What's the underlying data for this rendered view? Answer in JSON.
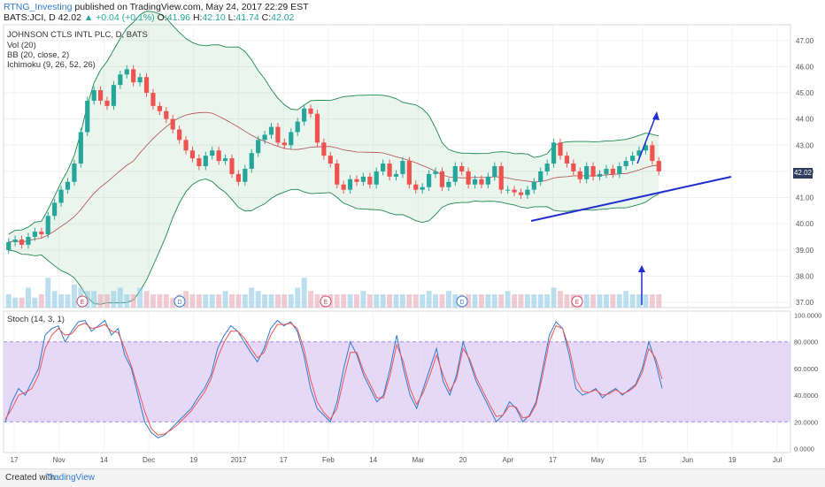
{
  "header": {
    "author": "RTNG_Investing",
    "published": "published on TradingView.com, May 24, 2017 22:29 EST",
    "symbol_line": "BATS:JCI, D",
    "last": "42.02",
    "change": "▲ +0.04 (+0.1%)",
    "o_label": "O:",
    "o": "41.96",
    "h_label": "H:",
    "h": "42.10",
    "l_label": "L:",
    "l": "41.74",
    "c_label": "C:",
    "c": "42.02"
  },
  "legend": {
    "name": "JOHNSON CTLS INTL PLC, D, BATS",
    "vol": "Vol (20)",
    "bb": "BB (20, close, 2)",
    "ichimoku": "Ichimoku (9, 26, 52, 26)",
    "stoch": "Stoch (14, 3, 1)"
  },
  "price_badge": "42.02",
  "footer": {
    "created": "Created with",
    "logo": "TradingView"
  },
  "colors": {
    "up": "#26a69a",
    "down": "#ef5350",
    "bb": "#1b8a4a",
    "stoch_k": "#2e7bcf",
    "stoch_d": "#ef5350",
    "trend": "#1f2ecf",
    "stoch_band": "#dcc9f5"
  },
  "chart_data": [
    {
      "type": "line",
      "title": "JOHNSON CTLS INTL PLC, D, BATS",
      "y_ticks": [
        "47.00",
        "46.00",
        "45.00",
        "44.00",
        "43.00",
        "42.00",
        "41.00",
        "40.00",
        "39.00",
        "38.00",
        "37.00"
      ],
      "x_ticks": [
        "17",
        "Nov",
        "14",
        "Dec",
        "19",
        "2017",
        "17",
        "Feb",
        "14",
        "Mar",
        "20",
        "Apr",
        "17",
        "May",
        "15",
        "Jun",
        "19",
        "Jul"
      ],
      "ylim": [
        36.8,
        47.6
      ],
      "close": [
        39.3,
        39.4,
        39.2,
        39.5,
        39.7,
        39.6,
        40.3,
        40.8,
        41.3,
        41.6,
        42.3,
        43.5,
        44.7,
        45.1,
        44.7,
        44.5,
        45.3,
        45.7,
        45.9,
        45.4,
        45.6,
        45.0,
        44.5,
        44.3,
        44.0,
        43.6,
        43.2,
        42.8,
        42.5,
        42.2,
        42.6,
        42.8,
        42.4,
        42.5,
        41.9,
        41.6,
        42.1,
        42.7,
        43.2,
        43.4,
        43.7,
        43.1,
        43.0,
        43.5,
        43.9,
        44.4,
        44.2,
        43.1,
        42.6,
        42.3,
        41.5,
        41.3,
        41.7,
        41.6,
        41.8,
        41.5,
        42.0,
        42.3,
        41.8,
        41.9,
        42.4,
        41.5,
        41.3,
        41.4,
        41.9,
        42.0,
        41.4,
        41.6,
        42.2,
        42.0,
        41.5,
        41.7,
        41.5,
        41.8,
        42.2,
        41.3,
        41.3,
        41.2,
        41.1,
        41.3,
        41.6,
        42.0,
        42.3,
        43.1,
        42.6,
        42.3,
        42.0,
        41.7,
        42.2,
        41.8,
        41.9,
        42.1,
        41.9,
        42.2,
        42.4,
        42.6,
        42.8,
        43.0,
        42.4,
        42.0
      ],
      "open": [
        39.0,
        39.3,
        39.4,
        39.2,
        39.5,
        39.7,
        39.6,
        40.3,
        40.8,
        41.3,
        41.6,
        42.3,
        43.5,
        44.7,
        45.1,
        44.7,
        44.5,
        45.3,
        45.7,
        45.9,
        45.4,
        45.6,
        45.0,
        44.5,
        44.3,
        44.0,
        43.6,
        43.2,
        42.8,
        42.5,
        42.2,
        42.6,
        42.8,
        42.4,
        42.5,
        41.9,
        41.6,
        42.1,
        42.7,
        43.2,
        43.4,
        43.7,
        43.1,
        43.0,
        43.5,
        43.9,
        44.4,
        44.2,
        43.1,
        42.6,
        42.3,
        41.5,
        41.3,
        41.7,
        41.6,
        41.8,
        41.5,
        42.0,
        42.3,
        41.8,
        41.9,
        42.4,
        41.5,
        41.3,
        41.4,
        41.9,
        42.0,
        41.4,
        41.6,
        42.2,
        42.0,
        41.5,
        41.7,
        41.5,
        41.8,
        42.2,
        41.3,
        41.3,
        41.2,
        41.1,
        41.3,
        41.6,
        42.0,
        42.3,
        43.1,
        42.6,
        42.3,
        42.0,
        41.7,
        42.2,
        41.8,
        41.9,
        42.1,
        41.9,
        42.2,
        42.4,
        42.6,
        42.8,
        43.0,
        42.4
      ],
      "volume": [
        4,
        3,
        3,
        6,
        3,
        4,
        9,
        5,
        4,
        4,
        7,
        6,
        5,
        5,
        4,
        4,
        5,
        6,
        4,
        4,
        6,
        5,
        4,
        4,
        4,
        3,
        4,
        5,
        4,
        4,
        4,
        4,
        4,
        5,
        4,
        4,
        4,
        6,
        5,
        4,
        4,
        4,
        4,
        4,
        6,
        9,
        5,
        4,
        4,
        4,
        4,
        4,
        4,
        4,
        5,
        4,
        4,
        4,
        4,
        4,
        4,
        4,
        4,
        4,
        5,
        4,
        4,
        5,
        4,
        4,
        4,
        4,
        4,
        4,
        4,
        4,
        5,
        4,
        4,
        4,
        4,
        4,
        4,
        6,
        5,
        4,
        4,
        4,
        4,
        4,
        4,
        4,
        4,
        4,
        5,
        4,
        4,
        4,
        4,
        4
      ],
      "annotations": [
        "E",
        "D",
        "E",
        "D",
        "E"
      ]
    },
    {
      "type": "line",
      "title": "Stoch (14, 3, 1)",
      "y_ticks": [
        "100.0000",
        "80.0000",
        "60.0000",
        "40.0000",
        "20.0000",
        "0.0000"
      ],
      "ylim": [
        -3,
        103
      ],
      "band": [
        20,
        80
      ],
      "series": [
        {
          "values": [
            20,
            35,
            45,
            40,
            50,
            60,
            85,
            90,
            92,
            80,
            88,
            95,
            96,
            88,
            92,
            96,
            85,
            90,
            70,
            60,
            40,
            20,
            12,
            8,
            10,
            15,
            20,
            25,
            30,
            38,
            45,
            55,
            75,
            85,
            92,
            88,
            80,
            72,
            65,
            75,
            90,
            96,
            92,
            95,
            88,
            70,
            45,
            30,
            25,
            20,
            35,
            60,
            80,
            70,
            55,
            45,
            35,
            40,
            60,
            85,
            60,
            40,
            30,
            45,
            60,
            75,
            50,
            40,
            55,
            80,
            65,
            50,
            40,
            30,
            20,
            25,
            35,
            30,
            20,
            25,
            35,
            60,
            85,
            95,
            90,
            70,
            45,
            40,
            42,
            45,
            38,
            42,
            45,
            40,
            44,
            48,
            60,
            80,
            65,
            45
          ]
        },
        {
          "values": [
            22,
            30,
            40,
            42,
            45,
            55,
            75,
            85,
            90,
            85,
            86,
            92,
            94,
            90,
            91,
            93,
            88,
            87,
            75,
            62,
            45,
            28,
            15,
            10,
            11,
            14,
            18,
            23,
            28,
            35,
            42,
            52,
            68,
            80,
            88,
            88,
            83,
            75,
            68,
            72,
            85,
            93,
            93,
            94,
            90,
            75,
            52,
            35,
            27,
            22,
            30,
            52,
            72,
            72,
            58,
            48,
            38,
            38,
            55,
            78,
            65,
            45,
            33,
            42,
            55,
            70,
            55,
            43,
            52,
            75,
            67,
            53,
            43,
            33,
            24,
            25,
            32,
            31,
            23,
            24,
            33,
            55,
            80,
            92,
            90,
            75,
            52,
            43,
            42,
            44,
            40,
            41,
            44,
            41,
            43,
            47,
            57,
            75,
            68,
            52
          ]
        }
      ]
    }
  ]
}
